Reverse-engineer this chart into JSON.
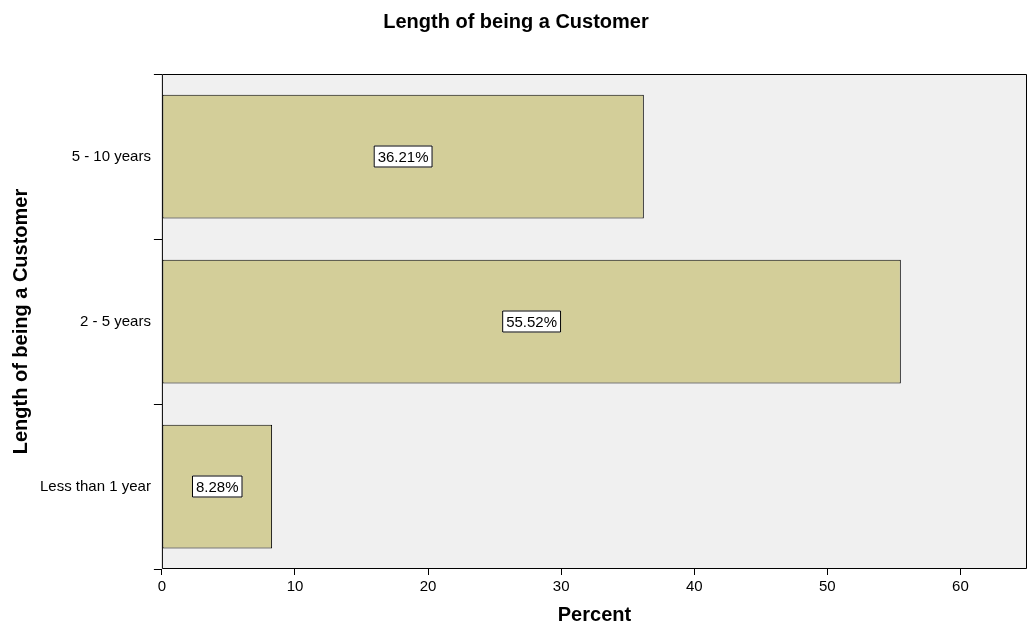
{
  "chart_data": {
    "type": "bar",
    "orientation": "horizontal",
    "title": "Length of being a Customer",
    "xlabel": "Percent",
    "ylabel": "Length of being a Customer",
    "categories": [
      "5 - 10 years",
      "2 - 5 years",
      "Less than 1 year"
    ],
    "values": [
      36.21,
      55.52,
      8.28
    ],
    "color": "#d3ce99",
    "value_labels": [
      "36.21%",
      "55.52%",
      "8.28%"
    ],
    "xlim": [
      0,
      65
    ],
    "xticks": [
      0,
      10,
      20,
      30,
      40,
      50,
      60
    ],
    "grid": false,
    "legend": false
  }
}
